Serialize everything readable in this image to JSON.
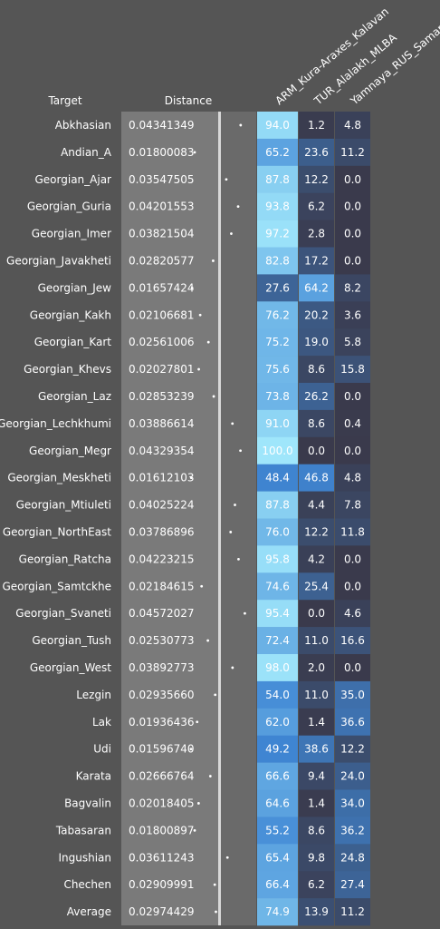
{
  "chart_data": {
    "type": "table",
    "headers": {
      "target": "Target",
      "distance": "Distance",
      "columns": [
        "ARM_Kura-Araxes_Kalavan",
        "TUR_Alalakh_MLBA",
        "Yamnaya_RUS_Samara"
      ]
    },
    "rows": [
      {
        "target": "Abkhasian",
        "distance": "0.04341349",
        "values": [
          "94.0",
          "1.2",
          "4.8"
        ]
      },
      {
        "target": "Andian_A",
        "distance": "0.01800083",
        "values": [
          "65.2",
          "23.6",
          "11.2"
        ]
      },
      {
        "target": "Georgian_Ajar",
        "distance": "0.03547505",
        "values": [
          "87.8",
          "12.2",
          "0.0"
        ]
      },
      {
        "target": "Georgian_Guria",
        "distance": "0.04201553",
        "values": [
          "93.8",
          "6.2",
          "0.0"
        ]
      },
      {
        "target": "Georgian_Imer",
        "distance": "0.03821504",
        "values": [
          "97.2",
          "2.8",
          "0.0"
        ]
      },
      {
        "target": "Georgian_Javakheti",
        "distance": "0.02820577",
        "values": [
          "82.8",
          "17.2",
          "0.0"
        ]
      },
      {
        "target": "Georgian_Jew",
        "distance": "0.01657424",
        "values": [
          "27.6",
          "64.2",
          "8.2"
        ]
      },
      {
        "target": "Georgian_Kakh",
        "distance": "0.02106681",
        "values": [
          "76.2",
          "20.2",
          "3.6"
        ]
      },
      {
        "target": "Georgian_Kart",
        "distance": "0.02561006",
        "values": [
          "75.2",
          "19.0",
          "5.8"
        ]
      },
      {
        "target": "Georgian_Khevs",
        "distance": "0.02027801",
        "values": [
          "75.6",
          "8.6",
          "15.8"
        ]
      },
      {
        "target": "Georgian_Laz",
        "distance": "0.02853239",
        "values": [
          "73.8",
          "26.2",
          "0.0"
        ]
      },
      {
        "target": "Georgian_Lechkhumi",
        "distance": "0.03886614",
        "values": [
          "91.0",
          "8.6",
          "0.4"
        ]
      },
      {
        "target": "Georgian_Megr",
        "distance": "0.04329354",
        "values": [
          "100.0",
          "0.0",
          "0.0"
        ]
      },
      {
        "target": "Georgian_Meskheti",
        "distance": "0.01612103",
        "values": [
          "48.4",
          "46.8",
          "4.8"
        ]
      },
      {
        "target": "Georgian_Mtiuleti",
        "distance": "0.04025224",
        "values": [
          "87.8",
          "4.4",
          "7.8"
        ]
      },
      {
        "target": "Georgian_NorthEast",
        "distance": "0.03786896",
        "values": [
          "76.0",
          "12.2",
          "11.8"
        ]
      },
      {
        "target": "Georgian_Ratcha",
        "distance": "0.04223215",
        "values": [
          "95.8",
          "4.2",
          "0.0"
        ]
      },
      {
        "target": "Georgian_Samtckhe",
        "distance": "0.02184615",
        "values": [
          "74.6",
          "25.4",
          "0.0"
        ]
      },
      {
        "target": "Georgian_Svaneti",
        "distance": "0.04572027",
        "values": [
          "95.4",
          "0.0",
          "4.6"
        ]
      },
      {
        "target": "Georgian_Tush",
        "distance": "0.02530773",
        "values": [
          "72.4",
          "11.0",
          "16.6"
        ]
      },
      {
        "target": "Georgian_West",
        "distance": "0.03892773",
        "values": [
          "98.0",
          "2.0",
          "0.0"
        ]
      },
      {
        "target": "Lezgin",
        "distance": "0.02935660",
        "values": [
          "54.0",
          "11.0",
          "35.0"
        ]
      },
      {
        "target": "Lak",
        "distance": "0.01936436",
        "values": [
          "62.0",
          "1.4",
          "36.6"
        ]
      },
      {
        "target": "Udi",
        "distance": "0.01596740",
        "values": [
          "49.2",
          "38.6",
          "12.2"
        ]
      },
      {
        "target": "Karata",
        "distance": "0.02666764",
        "values": [
          "66.6",
          "9.4",
          "24.0"
        ]
      },
      {
        "target": "Bagvalin",
        "distance": "0.02018405",
        "values": [
          "64.6",
          "1.4",
          "34.0"
        ]
      },
      {
        "target": "Tabasaran",
        "distance": "0.01800897",
        "values": [
          "55.2",
          "8.6",
          "36.2"
        ]
      },
      {
        "target": "Ingushian",
        "distance": "0.03611243",
        "values": [
          "65.4",
          "9.8",
          "24.8"
        ]
      },
      {
        "target": "Chechen",
        "distance": "0.02909991",
        "values": [
          "66.4",
          "6.2",
          "27.4"
        ]
      },
      {
        "target": "Average",
        "distance": "0.02974429",
        "values": [
          "74.9",
          "13.9",
          "11.2"
        ]
      }
    ]
  },
  "colors": {
    "background": "#555555",
    "distance_panel": "#7a7a7a",
    "dot_panel": "#6a6a6a",
    "divider": "#d8d8d8",
    "heat_low": "#3a3a4c",
    "heat_mid": "#3f86d4",
    "heat_high": "#9fe6fb"
  }
}
